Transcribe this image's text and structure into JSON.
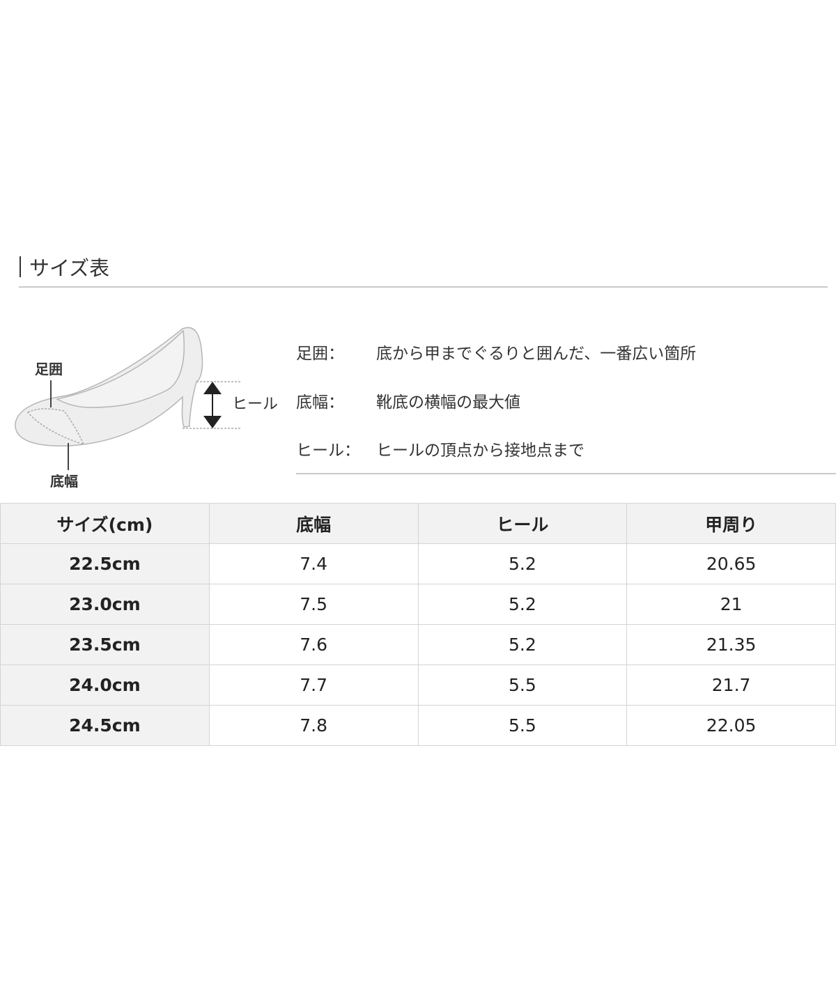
{
  "title": "サイズ表",
  "diagram": {
    "label_ashi": "足囲",
    "label_sokofuku": "底幅",
    "label_heel": "ヒール"
  },
  "definitions": [
    {
      "label": "足囲：",
      "text": "底から甲までぐるりと囲んだ、一番広い箇所"
    },
    {
      "label": "底幅：",
      "text": "靴底の横幅の最大値"
    },
    {
      "label": "ヒール：",
      "text": "ヒールの頂点から接地点まで"
    }
  ],
  "table": {
    "headers": [
      "サイズ(cm)",
      "底幅",
      "ヒール",
      "甲周り"
    ],
    "rows": [
      [
        "22.5cm",
        "7.4",
        "5.2",
        "20.65"
      ],
      [
        "23.0cm",
        "7.5",
        "5.2",
        "21"
      ],
      [
        "23.5cm",
        "7.6",
        "5.2",
        "21.35"
      ],
      [
        "24.0cm",
        "7.7",
        "5.5",
        "21.7"
      ],
      [
        "24.5cm",
        "7.8",
        "5.5",
        "22.05"
      ]
    ]
  }
}
